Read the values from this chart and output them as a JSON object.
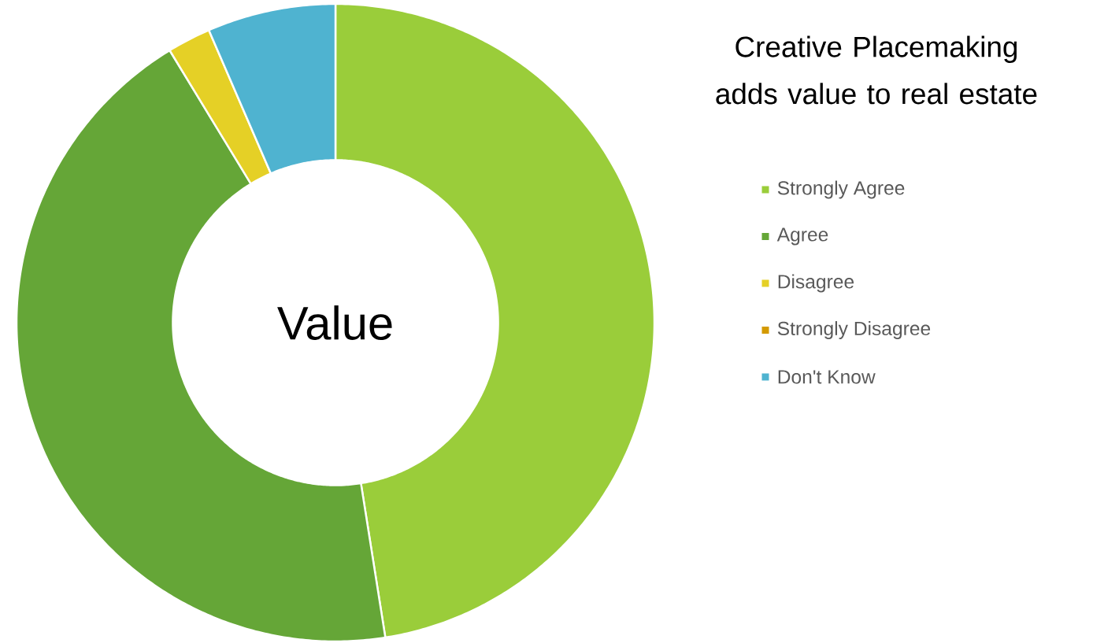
{
  "chart_data": {
    "type": "donut",
    "title": "Creative Placemaking adds value to real estate",
    "categories": [
      "Strongly Agree",
      "Agree",
      "Disagree",
      "Strongly Disagree",
      "Don't Know"
    ],
    "values": [
      47.5,
      43.8,
      2.2,
      0,
      6.5
    ],
    "colors": [
      "#9acd3a",
      "#65a637",
      "#e5d026",
      "#d49a00",
      "#4fb3d0"
    ],
    "legend": "right",
    "annotations": [
      "Value"
    ]
  }
}
